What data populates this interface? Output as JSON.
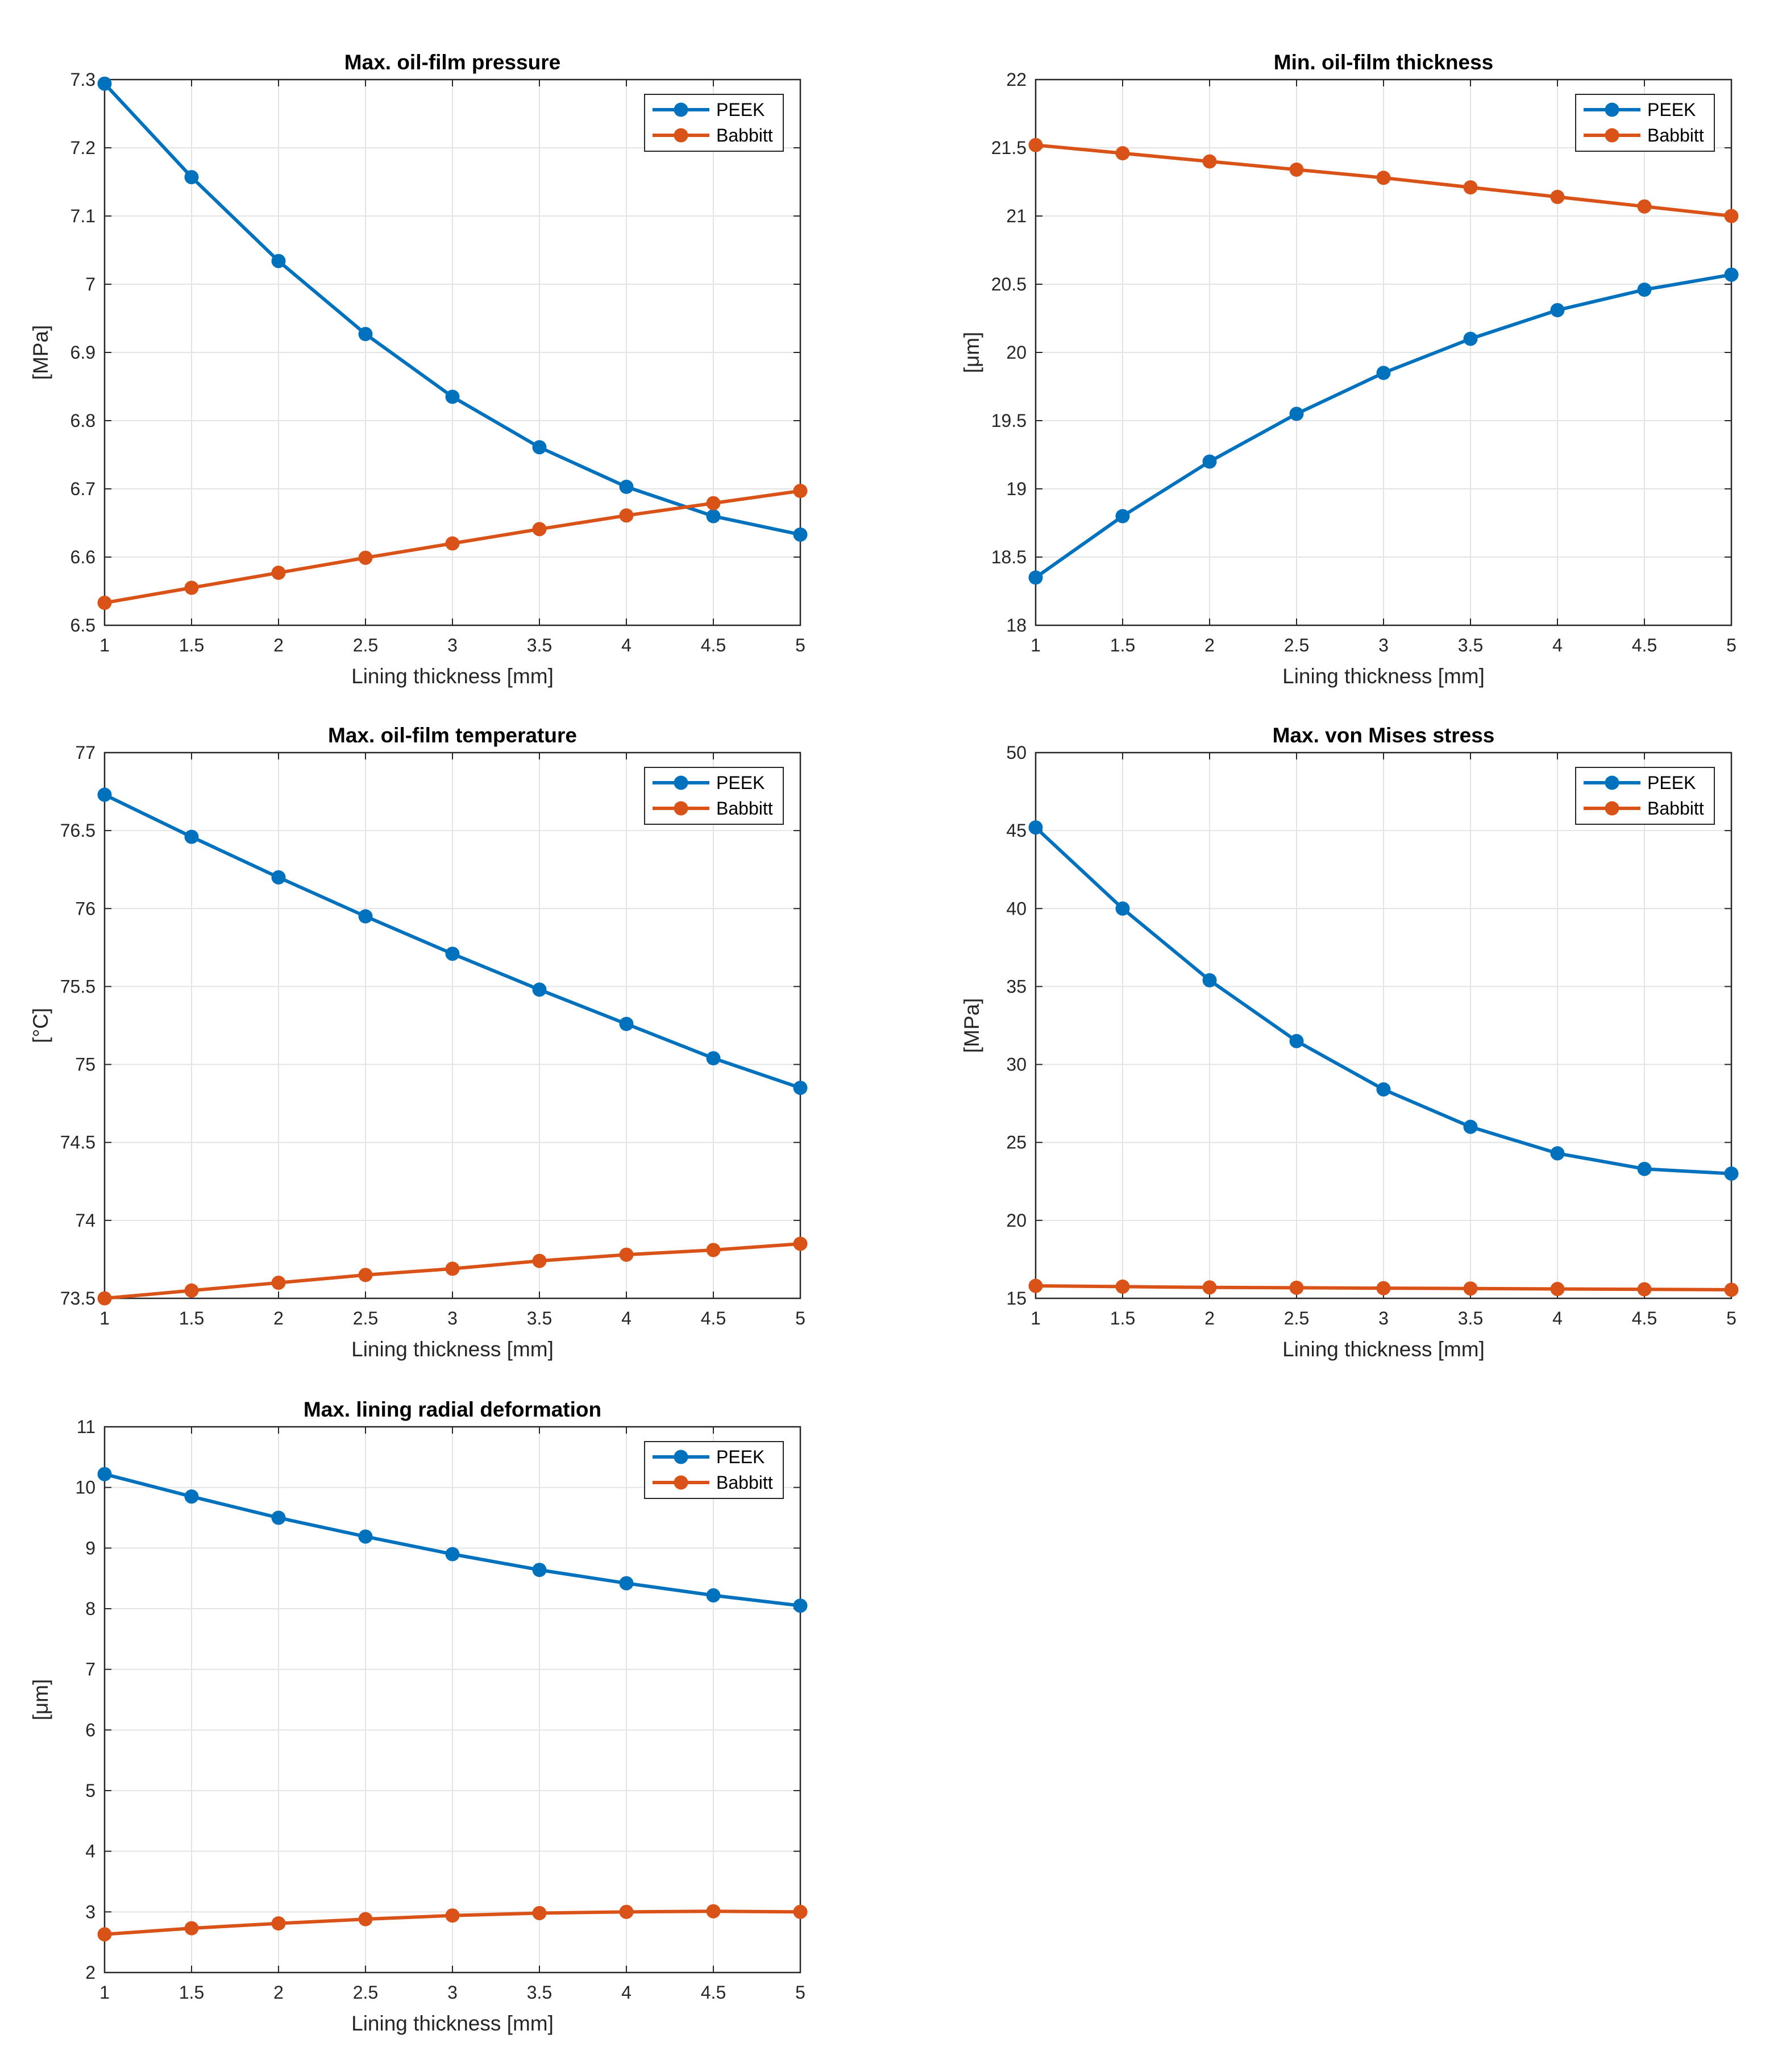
{
  "chart_data": [
    {
      "type": "line",
      "title": "Max. oil-film pressure",
      "xlabel": "Lining thickness [mm]",
      "ylabel": "[MPa]",
      "x": [
        1,
        1.5,
        2,
        2.5,
        3,
        3.5,
        4,
        4.5,
        5
      ],
      "xlim": [
        1,
        5
      ],
      "ylim": [
        6.5,
        7.3
      ],
      "xticks": [
        1,
        1.5,
        2,
        2.5,
        3,
        3.5,
        4,
        4.5,
        5
      ],
      "yticks": [
        6.5,
        6.6,
        6.7,
        6.8,
        6.9,
        7,
        7.1,
        7.2,
        7.3
      ],
      "grid": true,
      "legend_position": "top-right",
      "series": [
        {
          "name": "PEEK",
          "values": [
            7.294,
            7.157,
            7.034,
            6.927,
            6.835,
            6.761,
            6.703,
            6.66,
            6.633
          ]
        },
        {
          "name": "Babbitt",
          "values": [
            6.533,
            6.555,
            6.577,
            6.599,
            6.62,
            6.641,
            6.661,
            6.679,
            6.697
          ]
        }
      ]
    },
    {
      "type": "line",
      "title": "Min. oil-film thickness",
      "xlabel": "Lining thickness [mm]",
      "ylabel": "[μm]",
      "x": [
        1,
        1.5,
        2,
        2.5,
        3,
        3.5,
        4,
        4.5,
        5
      ],
      "xlim": [
        1,
        5
      ],
      "ylim": [
        18,
        22
      ],
      "xticks": [
        1,
        1.5,
        2,
        2.5,
        3,
        3.5,
        4,
        4.5,
        5
      ],
      "yticks": [
        18,
        18.5,
        19,
        19.5,
        20,
        20.5,
        21,
        21.5,
        22
      ],
      "grid": true,
      "legend_position": "top-right",
      "series": [
        {
          "name": "PEEK",
          "values": [
            18.35,
            18.8,
            19.2,
            19.55,
            19.85,
            20.1,
            20.31,
            20.46,
            20.57
          ]
        },
        {
          "name": "Babbitt",
          "values": [
            21.52,
            21.46,
            21.4,
            21.34,
            21.28,
            21.21,
            21.14,
            21.07,
            21.0
          ]
        }
      ]
    },
    {
      "type": "line",
      "title": "Max. oil-film temperature",
      "xlabel": "Lining thickness [mm]",
      "ylabel": "[°C]",
      "x": [
        1,
        1.5,
        2,
        2.5,
        3,
        3.5,
        4,
        4.5,
        5
      ],
      "xlim": [
        1,
        5
      ],
      "ylim": [
        73.5,
        77
      ],
      "xticks": [
        1,
        1.5,
        2,
        2.5,
        3,
        3.5,
        4,
        4.5,
        5
      ],
      "yticks": [
        73.5,
        74,
        74.5,
        75,
        75.5,
        76,
        76.5,
        77
      ],
      "grid": true,
      "legend_position": "top-right",
      "series": [
        {
          "name": "PEEK",
          "values": [
            76.73,
            76.46,
            76.2,
            75.95,
            75.71,
            75.48,
            75.26,
            75.04,
            74.85
          ]
        },
        {
          "name": "Babbitt",
          "values": [
            73.5,
            73.55,
            73.6,
            73.65,
            73.69,
            73.74,
            73.78,
            73.81,
            73.85
          ]
        }
      ]
    },
    {
      "type": "line",
      "title": "Max. von Mises stress",
      "xlabel": "Lining thickness [mm]",
      "ylabel": "[MPa]",
      "x": [
        1,
        1.5,
        2,
        2.5,
        3,
        3.5,
        4,
        4.5,
        5
      ],
      "xlim": [
        1,
        5
      ],
      "ylim": [
        15,
        50
      ],
      "xticks": [
        1,
        1.5,
        2,
        2.5,
        3,
        3.5,
        4,
        4.5,
        5
      ],
      "yticks": [
        15,
        20,
        25,
        30,
        35,
        40,
        45,
        50
      ],
      "grid": true,
      "legend_position": "top-right",
      "series": [
        {
          "name": "PEEK",
          "values": [
            45.2,
            40.0,
            35.4,
            31.5,
            28.4,
            26.0,
            24.3,
            23.3,
            23.0
          ]
        },
        {
          "name": "Babbitt",
          "values": [
            15.8,
            15.75,
            15.7,
            15.68,
            15.65,
            15.63,
            15.6,
            15.58,
            15.55
          ]
        }
      ]
    },
    {
      "type": "line",
      "title": "Max. lining radial deformation",
      "xlabel": "Lining thickness [mm]",
      "ylabel": "[μm]",
      "x": [
        1,
        1.5,
        2,
        2.5,
        3,
        3.5,
        4,
        4.5,
        5
      ],
      "xlim": [
        1,
        5
      ],
      "ylim": [
        2,
        11
      ],
      "xticks": [
        1,
        1.5,
        2,
        2.5,
        3,
        3.5,
        4,
        4.5,
        5
      ],
      "yticks": [
        2,
        3,
        4,
        5,
        6,
        7,
        8,
        9,
        10,
        11
      ],
      "grid": true,
      "legend_position": "top-right",
      "series": [
        {
          "name": "PEEK",
          "values": [
            10.22,
            9.85,
            9.5,
            9.19,
            8.9,
            8.64,
            8.42,
            8.22,
            8.05
          ]
        },
        {
          "name": "Babbitt",
          "values": [
            2.63,
            2.73,
            2.81,
            2.88,
            2.94,
            2.98,
            3.0,
            3.01,
            3.0
          ]
        }
      ]
    }
  ],
  "colors": {
    "peek": "#0072BD",
    "babbitt": "#D95319",
    "grid": "#e4e4e4",
    "axis": "#262626"
  }
}
